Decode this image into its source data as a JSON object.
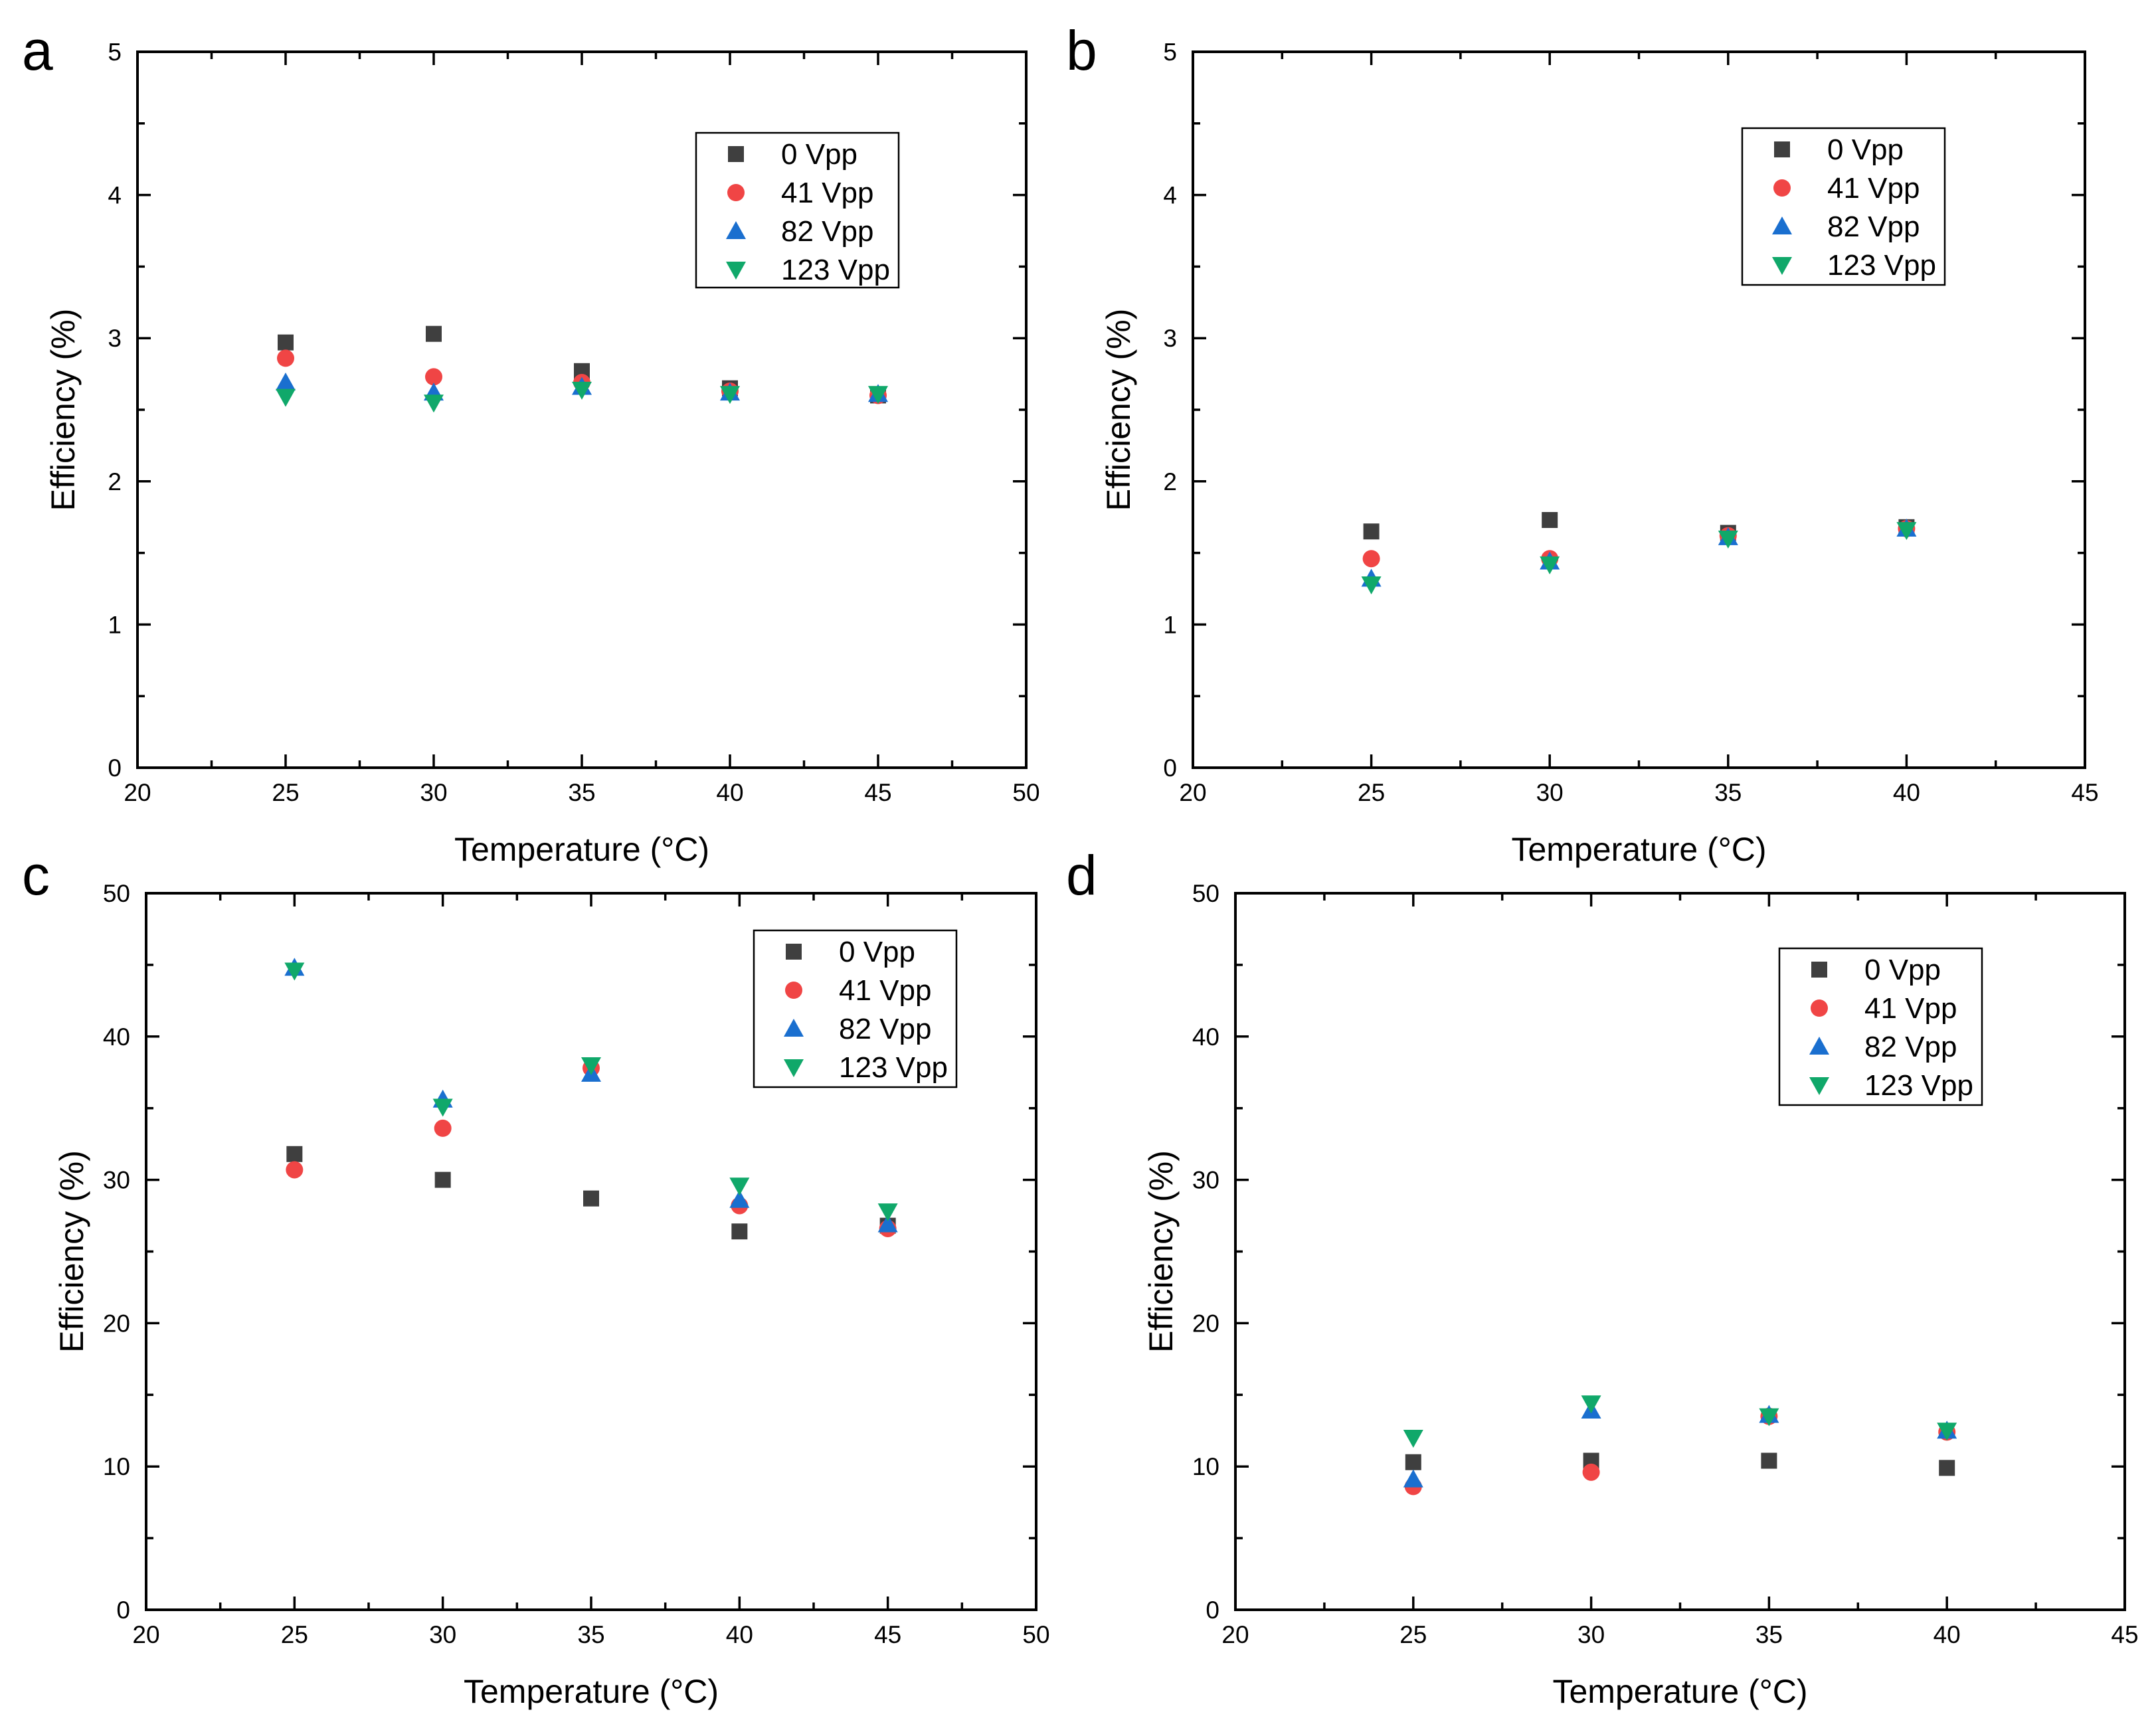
{
  "colors": {
    "0 Vpp": "#3f3f3f",
    "41 Vpp": "#f04545",
    "82 Vpp": "#1a6fcf",
    "123 Vpp": "#10a86a"
  },
  "markers": {
    "0 Vpp": "square",
    "41 Vpp": "circle",
    "82 Vpp": "triangle-up",
    "123 Vpp": "triangle-down"
  },
  "chart_data": [
    {
      "panel": "a",
      "type": "scatter",
      "xlabel": "Temperature (°C)",
      "ylabel": "Efficiency (%)",
      "xlim": [
        20,
        50
      ],
      "ylim": [
        0,
        5
      ],
      "xticks": [
        "20",
        "25",
        "30",
        "35",
        "40",
        "45",
        "50"
      ],
      "yticks": [
        "0",
        "1",
        "2",
        "3",
        "4",
        "5"
      ],
      "legend_position": "upper-center-right",
      "series": [
        {
          "name": "0 Vpp",
          "x": [
            25,
            30,
            35,
            40,
            45
          ],
          "y": [
            2.97,
            3.03,
            2.77,
            2.65,
            2.6
          ]
        },
        {
          "name": "41 Vpp",
          "x": [
            25,
            30,
            35,
            40,
            45
          ],
          "y": [
            2.86,
            2.73,
            2.69,
            2.63,
            2.6
          ]
        },
        {
          "name": "82 Vpp",
          "x": [
            25,
            30,
            35,
            40,
            45
          ],
          "y": [
            2.69,
            2.62,
            2.66,
            2.62,
            2.61
          ]
        },
        {
          "name": "123 Vpp",
          "x": [
            25,
            30,
            35,
            40,
            45
          ],
          "y": [
            2.59,
            2.55,
            2.64,
            2.61,
            2.61
          ]
        }
      ]
    },
    {
      "panel": "b",
      "type": "scatter",
      "xlabel": "Temperature (°C)",
      "ylabel": "Efficiency (%)",
      "xlim": [
        20,
        45
      ],
      "ylim": [
        0,
        5
      ],
      "xticks": [
        "20",
        "25",
        "30",
        "35",
        "40",
        "45"
      ],
      "yticks": [
        "0",
        "1",
        "2",
        "3",
        "4",
        "5"
      ],
      "legend_position": "upper-right",
      "series": [
        {
          "name": "0 Vpp",
          "x": [
            25,
            30,
            35,
            40
          ],
          "y": [
            1.65,
            1.73,
            1.64,
            1.68
          ]
        },
        {
          "name": "41 Vpp",
          "x": [
            25,
            30,
            35,
            40
          ],
          "y": [
            1.46,
            1.46,
            1.62,
            1.67
          ]
        },
        {
          "name": "82 Vpp",
          "x": [
            25,
            30,
            35,
            40
          ],
          "y": [
            1.32,
            1.44,
            1.61,
            1.67
          ]
        },
        {
          "name": "123 Vpp",
          "x": [
            25,
            30,
            35,
            40
          ],
          "y": [
            1.28,
            1.42,
            1.6,
            1.66
          ]
        }
      ]
    },
    {
      "panel": "c",
      "type": "scatter",
      "xlabel": "Temperature (°C)",
      "ylabel": "Efficiency (%)",
      "xlim": [
        20,
        50
      ],
      "ylim": [
        0,
        50
      ],
      "xticks": [
        "20",
        "25",
        "30",
        "35",
        "40",
        "45",
        "50"
      ],
      "yticks": [
        "0",
        "10",
        "20",
        "30",
        "40",
        "50"
      ],
      "legend_position": "upper-right",
      "series": [
        {
          "name": "0 Vpp",
          "x": [
            25,
            30,
            35,
            40,
            45
          ],
          "y": [
            31.8,
            30.0,
            28.7,
            26.4,
            26.8
          ]
        },
        {
          "name": "41 Vpp",
          "x": [
            25,
            30,
            35,
            40,
            45
          ],
          "y": [
            30.7,
            33.6,
            37.8,
            28.2,
            26.6
          ]
        },
        {
          "name": "82 Vpp",
          "x": [
            25,
            30,
            35,
            40,
            45
          ],
          "y": [
            44.8,
            35.6,
            37.4,
            28.6,
            26.9
          ]
        },
        {
          "name": "123 Vpp",
          "x": [
            25,
            30,
            35,
            40,
            45
          ],
          "y": [
            44.6,
            35.1,
            38.0,
            29.6,
            27.8
          ]
        }
      ]
    },
    {
      "panel": "d",
      "type": "scatter",
      "xlabel": "Temperature (°C)",
      "ylabel": "Efficiency (%)",
      "xlim": [
        20,
        45
      ],
      "ylim": [
        0,
        50
      ],
      "xticks": [
        "20",
        "25",
        "30",
        "35",
        "40",
        "45"
      ],
      "yticks": [
        "0",
        "10",
        "20",
        "30",
        "40",
        "50"
      ],
      "legend_position": "upper-right",
      "series": [
        {
          "name": "0 Vpp",
          "x": [
            25,
            30,
            35,
            40
          ],
          "y": [
            10.3,
            10.4,
            10.4,
            9.9
          ]
        },
        {
          "name": "41 Vpp",
          "x": [
            25,
            30,
            35,
            40
          ],
          "y": [
            8.6,
            9.6,
            13.5,
            12.4
          ]
        },
        {
          "name": "82 Vpp",
          "x": [
            25,
            30,
            35,
            40
          ],
          "y": [
            9.1,
            13.9,
            13.6,
            12.5
          ]
        },
        {
          "name": "123 Vpp",
          "x": [
            25,
            30,
            35,
            40
          ],
          "y": [
            12.0,
            14.4,
            13.5,
            12.5
          ]
        }
      ]
    }
  ]
}
